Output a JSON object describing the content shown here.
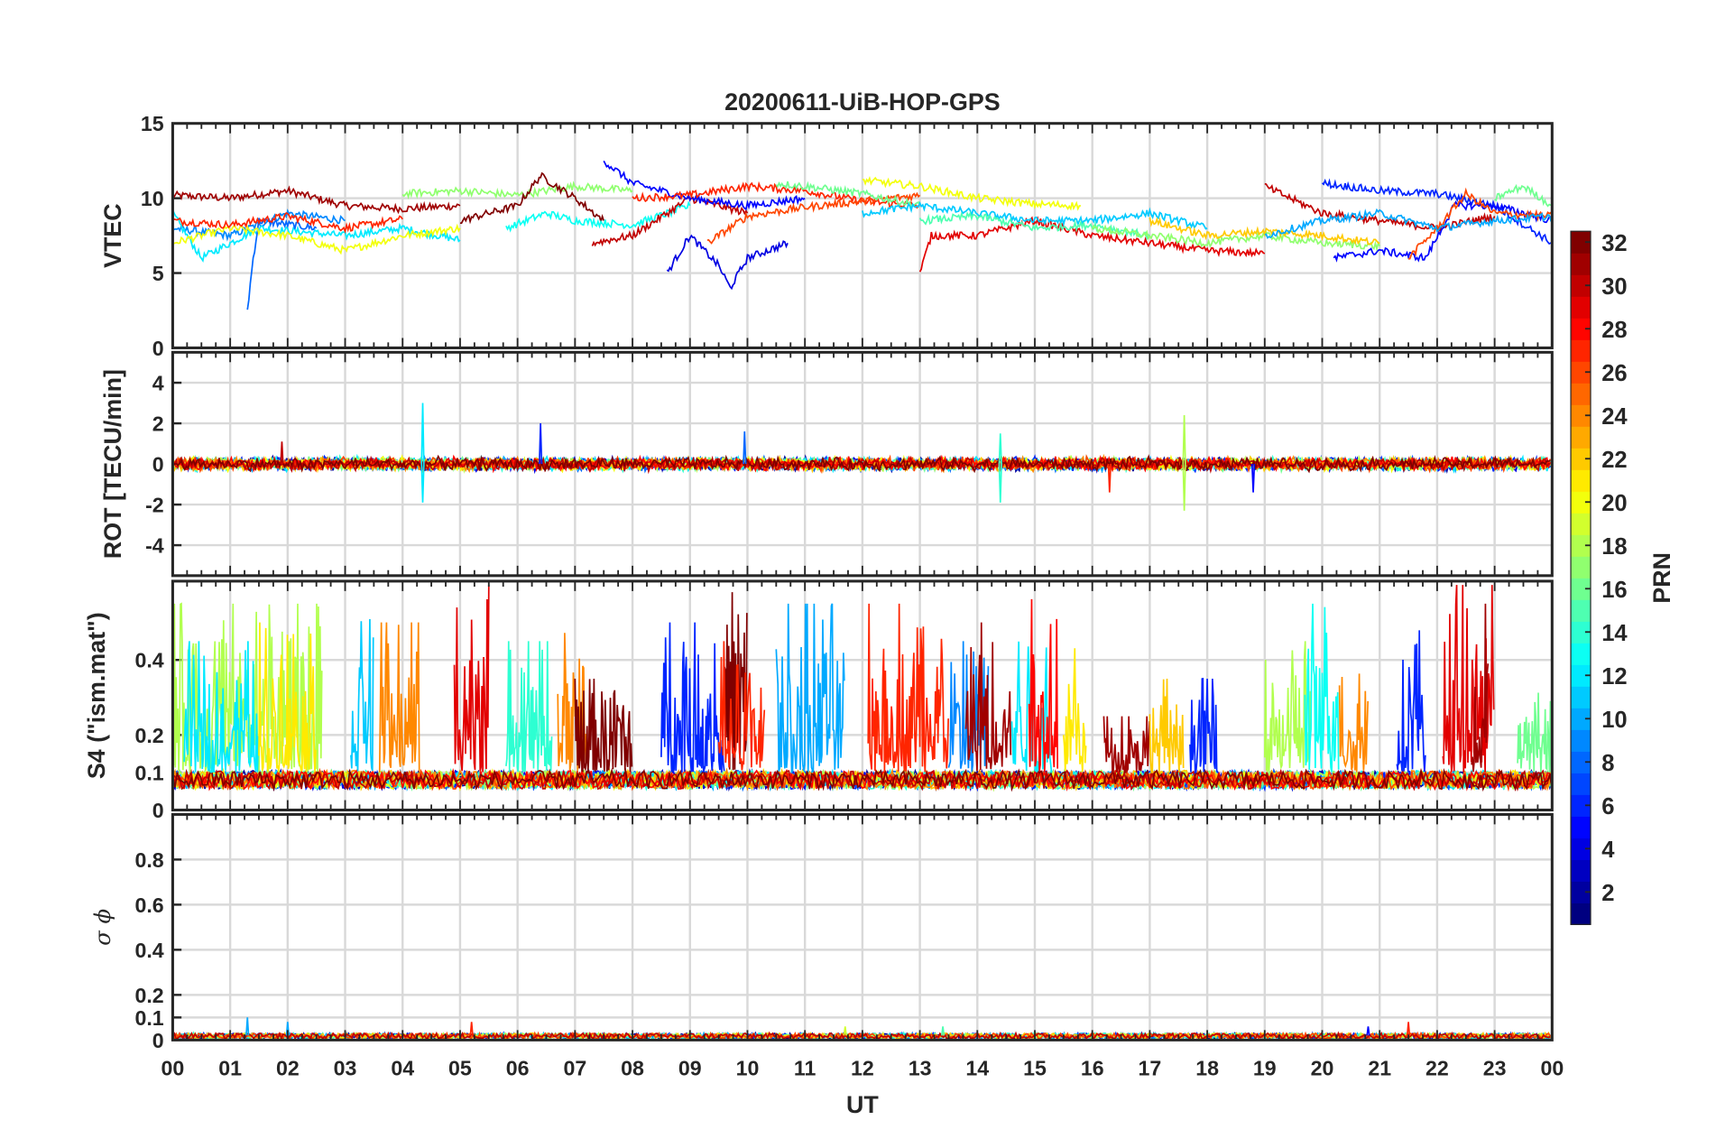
{
  "chart_data": {
    "type": "line",
    "title": "20200611-UiB-HOP-GPS",
    "xlabel": "UT",
    "xlim": [
      0,
      24
    ],
    "xtick_labels": [
      "00",
      "01",
      "02",
      "03",
      "04",
      "05",
      "06",
      "07",
      "08",
      "09",
      "10",
      "11",
      "12",
      "13",
      "14",
      "15",
      "16",
      "17",
      "18",
      "19",
      "20",
      "21",
      "22",
      "23",
      "00"
    ],
    "grid": true,
    "colorbar": {
      "label": "PRN",
      "range": [
        1,
        32
      ],
      "ticks": [
        "2",
        "4",
        "6",
        "8",
        "10",
        "12",
        "14",
        "16",
        "18",
        "20",
        "22",
        "24",
        "26",
        "28",
        "30",
        "32"
      ],
      "colormap": "jet",
      "levels": 32,
      "placement": "right"
    },
    "panels": [
      {
        "id": "vtec",
        "ylabel": "VTEC",
        "ylim": [
          0,
          15
        ],
        "yticks": [
          "0",
          "5",
          "10",
          "15"
        ],
        "noise": 0.25,
        "series": [
          {
            "prn": 31,
            "points": [
              [
                0,
                10.2
              ],
              [
                1,
                10
              ],
              [
                2,
                10.5
              ],
              [
                3,
                9.5
              ],
              [
                4,
                9.3
              ],
              [
                5,
                9.5
              ]
            ]
          },
          {
            "prn": 9,
            "points": [
              [
                0,
                8
              ],
              [
                1,
                7.5
              ],
              [
                2,
                9
              ],
              [
                3,
                8.5
              ]
            ]
          },
          {
            "prn": 12,
            "points": [
              [
                0,
                9
              ],
              [
                0.5,
                6
              ],
              [
                1.5,
                8
              ],
              [
                3,
                7.5
              ],
              [
                4,
                8
              ],
              [
                5,
                7.2
              ]
            ]
          },
          {
            "prn": 8,
            "points": [
              [
                1.3,
                2.5
              ],
              [
                1.4,
                6
              ],
              [
                1.5,
                8.5
              ],
              [
                2.5,
                8
              ]
            ]
          },
          {
            "prn": 20,
            "points": [
              [
                0,
                7
              ],
              [
                1,
                8
              ],
              [
                2,
                7.5
              ],
              [
                3,
                6.5
              ],
              [
                4,
                7.5
              ],
              [
                5,
                8
              ]
            ]
          },
          {
            "prn": 27,
            "points": [
              [
                0,
                8.5
              ],
              [
                1,
                8.2
              ],
              [
                2,
                8.8
              ],
              [
                3,
                8
              ],
              [
                4,
                8.6
              ]
            ]
          },
          {
            "prn": 17,
            "points": [
              [
                4,
                10.3
              ],
              [
                5,
                10.5
              ],
              [
                6,
                10.2
              ],
              [
                7,
                10.8
              ],
              [
                8,
                10.5
              ]
            ]
          },
          {
            "prn": 32,
            "points": [
              [
                5,
                8.5
              ],
              [
                6,
                9.5
              ],
              [
                6.4,
                11.5
              ],
              [
                7,
                10
              ],
              [
                7.5,
                8.5
              ]
            ]
          },
          {
            "prn": 13,
            "points": [
              [
                5.8,
                8
              ],
              [
                6.5,
                9
              ],
              [
                7,
                8.5
              ],
              [
                8,
                8.2
              ],
              [
                9,
                9.5
              ]
            ]
          },
          {
            "prn": 30,
            "points": [
              [
                7.3,
                7
              ],
              [
                8,
                7.5
              ],
              [
                9,
                10
              ],
              [
                10,
                9
              ]
            ]
          },
          {
            "prn": 5,
            "points": [
              [
                7.5,
                12.5
              ],
              [
                8,
                11
              ],
              [
                9,
                10
              ],
              [
                10,
                9.5
              ],
              [
                11,
                10
              ]
            ]
          },
          {
            "prn": 4,
            "points": [
              [
                8.6,
                5
              ],
              [
                9,
                7.5
              ],
              [
                9.5,
                5.5
              ],
              [
                9.7,
                4
              ],
              [
                10,
                6
              ],
              [
                10.7,
                7
              ]
            ]
          },
          {
            "prn": 27,
            "points": [
              [
                8,
                10
              ],
              [
                9,
                10.2
              ],
              [
                10,
                10.8
              ],
              [
                11,
                10.5
              ],
              [
                12,
                9.8
              ],
              [
                13,
                9.5
              ]
            ]
          },
          {
            "prn": 26,
            "points": [
              [
                9.3,
                7
              ],
              [
                10,
                8.8
              ],
              [
                11,
                9.4
              ],
              [
                12,
                9.8
              ],
              [
                13,
                10.2
              ]
            ]
          },
          {
            "prn": 16,
            "points": [
              [
                10.5,
                11
              ],
              [
                11,
                10.8
              ],
              [
                12,
                10.3
              ],
              [
                13,
                9.5
              ]
            ]
          },
          {
            "prn": 20,
            "points": [
              [
                12,
                11.2
              ],
              [
                13,
                10.8
              ],
              [
                14,
                10
              ],
              [
                15,
                9.6
              ],
              [
                15.8,
                9.5
              ]
            ]
          },
          {
            "prn": 29,
            "points": [
              [
                13,
                5
              ],
              [
                13.2,
                7.5
              ],
              [
                14,
                7.5
              ],
              [
                15,
                8.5
              ],
              [
                16,
                7.5
              ],
              [
                17,
                7
              ],
              [
                18,
                6.5
              ],
              [
                19,
                6.3
              ]
            ]
          },
          {
            "prn": 11,
            "points": [
              [
                12,
                9
              ],
              [
                13,
                9.5
              ],
              [
                14,
                9
              ],
              [
                15,
                8.5
              ],
              [
                16,
                8.5
              ],
              [
                17,
                9
              ],
              [
                18,
                8
              ]
            ]
          },
          {
            "prn": 15,
            "points": [
              [
                13,
                8.5
              ],
              [
                14,
                8.8
              ],
              [
                15,
                8
              ],
              [
                16,
                8.2
              ],
              [
                17,
                7.5
              ]
            ]
          },
          {
            "prn": 30,
            "points": [
              [
                19,
                10.8
              ],
              [
                20,
                9
              ],
              [
                21,
                8.5
              ],
              [
                22,
                8
              ],
              [
                23,
                8.8
              ]
            ]
          },
          {
            "prn": 6,
            "points": [
              [
                20,
                11
              ],
              [
                21,
                10.5
              ],
              [
                22,
                10.3
              ],
              [
                23,
                9.5
              ],
              [
                24,
                7
              ]
            ]
          },
          {
            "prn": 5,
            "points": [
              [
                20.2,
                6
              ],
              [
                21,
                6.5
              ],
              [
                21.8,
                6
              ],
              [
                22.3,
                9.5
              ],
              [
                23,
                9.5
              ],
              [
                24,
                8.5
              ]
            ]
          },
          {
            "prn": 17,
            "points": [
              [
                16,
                8
              ],
              [
                17,
                7.5
              ],
              [
                18,
                7
              ],
              [
                19,
                7.5
              ],
              [
                20,
                7
              ],
              [
                21,
                6.8
              ]
            ]
          },
          {
            "prn": 26,
            "points": [
              [
                21.5,
                6
              ],
              [
                22,
                8
              ],
              [
                22.5,
                10.3
              ],
              [
                23,
                9
              ],
              [
                24,
                8.8
              ]
            ]
          },
          {
            "prn": 16,
            "points": [
              [
                23,
                10
              ],
              [
                23.5,
                10.8
              ],
              [
                24,
                9.5
              ]
            ]
          },
          {
            "prn": 22,
            "points": [
              [
                17,
                8.5
              ],
              [
                18,
                7.5
              ],
              [
                19,
                7.8
              ],
              [
                20,
                7.5
              ],
              [
                21,
                7
              ]
            ]
          },
          {
            "prn": 10,
            "points": [
              [
                19,
                7.5
              ],
              [
                20,
                8.5
              ],
              [
                21,
                9
              ],
              [
                22,
                8
              ],
              [
                23,
                8.5
              ],
              [
                24,
                8.8
              ]
            ]
          }
        ]
      },
      {
        "id": "rot",
        "ylabel": "ROT [TECU/min]",
        "ylim": [
          -5.5,
          5.5
        ],
        "yticks": [
          "-4",
          "-2",
          "0",
          "2",
          "4"
        ],
        "noise": 0.25,
        "prns": [
          2,
          4,
          6,
          8,
          10,
          12,
          14,
          16,
          18,
          20,
          22,
          24,
          26,
          28,
          30,
          32
        ],
        "spikes": [
          [
            12,
            4.35,
            3.0
          ],
          [
            12,
            4.35,
            -1.9
          ],
          [
            6,
            6.4,
            2.0
          ],
          [
            8,
            9.95,
            1.6
          ],
          [
            14,
            14.4,
            1.5
          ],
          [
            14,
            14.4,
            -1.9
          ],
          [
            18,
            17.6,
            2.4
          ],
          [
            18,
            17.6,
            -2.3
          ],
          [
            5,
            18.8,
            -1.4
          ],
          [
            30,
            1.9,
            1.1
          ],
          [
            27,
            16.3,
            -1.4
          ]
        ]
      },
      {
        "id": "s4",
        "ylabel": "S4 (\"ism.mat\")",
        "ylim": [
          0,
          0.61
        ],
        "yticks": [
          "0",
          "0.1",
          "0.2",
          "0.4"
        ],
        "baseline": 0.07,
        "prns": [
          2,
          4,
          6,
          8,
          10,
          12,
          14,
          16,
          18,
          20,
          22,
          24,
          26,
          28,
          30,
          32
        ],
        "bursts": [
          [
            18,
            0,
            2.6,
            0.55
          ],
          [
            12,
            0.2,
            1.5,
            0.45
          ],
          [
            21,
            1.5,
            2.5,
            0.5
          ],
          [
            11,
            3.1,
            3.5,
            0.6
          ],
          [
            24,
            3.6,
            4.3,
            0.5
          ],
          [
            29,
            4.9,
            5.5,
            0.6
          ],
          [
            14,
            5.8,
            6.6,
            0.45
          ],
          [
            24,
            6.7,
            7.2,
            0.48
          ],
          [
            32,
            7.0,
            8.0,
            0.35
          ],
          [
            6,
            8.5,
            9.6,
            0.5
          ],
          [
            32,
            9.6,
            10.0,
            0.6
          ],
          [
            27,
            9.5,
            10.3,
            0.45
          ],
          [
            10,
            10.5,
            11.7,
            0.55
          ],
          [
            27,
            12.1,
            13.5,
            0.55
          ],
          [
            9,
            13.5,
            14.2,
            0.45
          ],
          [
            31,
            13.8,
            14.6,
            0.5
          ],
          [
            12,
            14.6,
            15.3,
            0.55
          ],
          [
            28,
            14.9,
            15.4,
            0.6
          ],
          [
            21,
            15.5,
            15.9,
            0.45
          ],
          [
            31,
            16.2,
            17.0,
            0.25
          ],
          [
            22,
            17.0,
            17.6,
            0.35
          ],
          [
            6,
            17.7,
            18.2,
            0.35
          ],
          [
            18,
            19.0,
            19.8,
            0.45
          ],
          [
            13,
            19.7,
            20.3,
            0.55
          ],
          [
            24,
            20.3,
            20.8,
            0.4
          ],
          [
            6,
            21.3,
            21.8,
            0.5
          ],
          [
            29,
            22.1,
            23.0,
            0.6
          ],
          [
            31,
            22.6,
            22.9,
            0.55
          ],
          [
            16,
            23.4,
            24,
            0.35
          ]
        ]
      },
      {
        "id": "sigma",
        "ylabel": "σ ϕ",
        "ylim": [
          0,
          1
        ],
        "yticks": [
          "0",
          "0.1",
          "0.2",
          "0.4",
          "0.6",
          "0.8"
        ],
        "baseline": 0.02,
        "prns": [
          2,
          6,
          10,
          14,
          18,
          22,
          26,
          30
        ],
        "spikes": [
          [
            10,
            1.3,
            0.1
          ],
          [
            10,
            2.0,
            0.08
          ],
          [
            27,
            5.2,
            0.08
          ],
          [
            19,
            11.7,
            0.06
          ],
          [
            15,
            13.4,
            0.06
          ],
          [
            5,
            20.8,
            0.06
          ],
          [
            27,
            21.5,
            0.08
          ]
        ]
      }
    ]
  }
}
